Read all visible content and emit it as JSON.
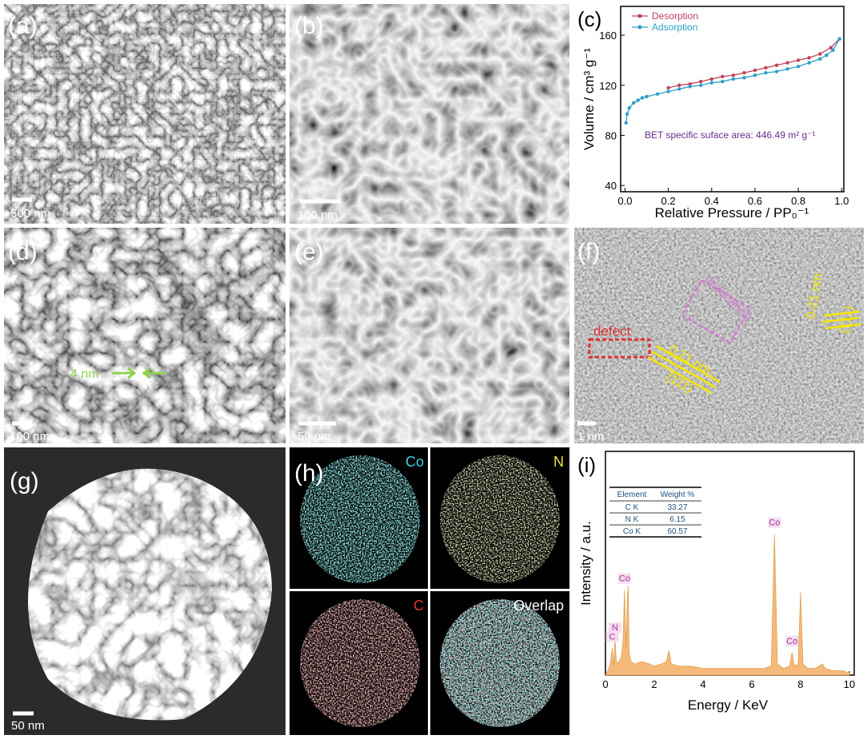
{
  "panels": [
    {
      "label": "(a)",
      "scale_bar": "500 nm"
    },
    {
      "label": "(b)",
      "scale_bar": "100 nm"
    },
    {
      "label": "(d)",
      "scale_bar": "100 nm",
      "annotations": [
        "4 nm"
      ]
    },
    {
      "label": "(e)",
      "scale_bar": "50 nm"
    },
    {
      "label": "(f)",
      "scale_bar": "1 nm",
      "annotations": [
        "defect",
        "dislocation",
        "0.21 nm",
        "(111)",
        "0.21 nm",
        "(111)"
      ]
    },
    {
      "label": "(g)",
      "scale_bar": "50 nm"
    },
    {
      "label": "(h)",
      "maps": [
        "Co",
        "N",
        "C",
        "Overlap"
      ]
    }
  ],
  "chart_data": [
    {
      "type": "line",
      "panel_label": "(c)",
      "x_label": "Relative Pressure / PP₀⁻¹",
      "y_label": "Volume / cm³ g⁻¹",
      "annotation": "BET specific suface area: 446.49 m² g⁻¹",
      "legend": "upper left",
      "xlim": [
        -0.02,
        1.01
      ],
      "ylim": [
        35,
        183
      ],
      "xticks": [
        {
          "value": 0,
          "label": "0.0"
        },
        0.2,
        0.4,
        0.6,
        0.8,
        {
          "value": 1,
          "label": "1.0"
        }
      ],
      "yticks": [
        40,
        80,
        120,
        160
      ],
      "series": [
        {
          "name": "Desorption",
          "color": "#c0415a",
          "x": [
            0.2,
            0.25,
            0.3,
            0.35,
            0.4,
            0.45,
            0.5,
            0.55,
            0.6,
            0.65,
            0.7,
            0.75,
            0.8,
            0.85,
            0.9,
            0.95,
            0.99
          ],
          "values": [
            118,
            120,
            121,
            123,
            125,
            127,
            128,
            130,
            132,
            134,
            136,
            138,
            140,
            142,
            145,
            150,
            157
          ]
        },
        {
          "name": "Adsorption",
          "color": "#2aa0c8",
          "x": [
            0.005,
            0.01,
            0.02,
            0.04,
            0.06,
            0.08,
            0.1,
            0.15,
            0.2,
            0.25,
            0.3,
            0.35,
            0.4,
            0.45,
            0.5,
            0.55,
            0.6,
            0.65,
            0.7,
            0.75,
            0.8,
            0.85,
            0.9,
            0.93,
            0.96,
            0.99
          ],
          "values": [
            90,
            97,
            102,
            106,
            108,
            110,
            111,
            113,
            115,
            117,
            119,
            120,
            122,
            123,
            125,
            126,
            128,
            130,
            131,
            133,
            135,
            138,
            141,
            144,
            148,
            157
          ]
        }
      ]
    },
    {
      "type": "area",
      "panel_label": "(i)",
      "x_label": "Energy / KeV",
      "y_label": "Intensity / a.u.",
      "color": "#f5b97a",
      "xlim": [
        0,
        10.2
      ],
      "ylim": [
        0,
        100
      ],
      "xticks": [
        0,
        2,
        4,
        6,
        8,
        10
      ],
      "x": [
        0,
        0.1,
        0.2,
        0.28,
        0.33,
        0.39,
        0.45,
        0.55,
        0.65,
        0.72,
        0.78,
        0.84,
        0.9,
        0.93,
        0.97,
        1.05,
        1.2,
        1.5,
        1.8,
        2.0,
        2.3,
        2.5,
        2.6,
        2.7,
        3.0,
        3.5,
        4.0,
        4.5,
        5.0,
        5.5,
        6.0,
        6.5,
        6.8,
        6.93,
        7.05,
        7.3,
        7.55,
        7.65,
        7.75,
        7.9,
        8.0,
        8.1,
        8.3,
        8.6,
        8.9,
        9.0,
        9.3,
        9.7,
        10.0
      ],
      "values": [
        0,
        2,
        5,
        12,
        4,
        16,
        5,
        6,
        8,
        15,
        38,
        12,
        35,
        40,
        10,
        6,
        5,
        6,
        5,
        4,
        5,
        6,
        11,
        5,
        4,
        4,
        3,
        3,
        3,
        3,
        3,
        3,
        4,
        63,
        5,
        3,
        4,
        10,
        4,
        5,
        37,
        5,
        3,
        3,
        5,
        3,
        2,
        2,
        1
      ],
      "annotations": [
        {
          "text": "Co",
          "x": 6.93
        },
        {
          "text": "Co",
          "x": 7.65
        },
        {
          "text": "Co",
          "x": 0.78
        },
        {
          "text": "N",
          "x": 0.39
        },
        {
          "text": "C",
          "x": 0.28
        }
      ],
      "table": {
        "columns": [
          "Element",
          "Weight %"
        ],
        "rows": [
          [
            "C K",
            33.27
          ],
          [
            "N K",
            6.15
          ],
          [
            "Co K",
            60.57
          ]
        ]
      }
    }
  ]
}
